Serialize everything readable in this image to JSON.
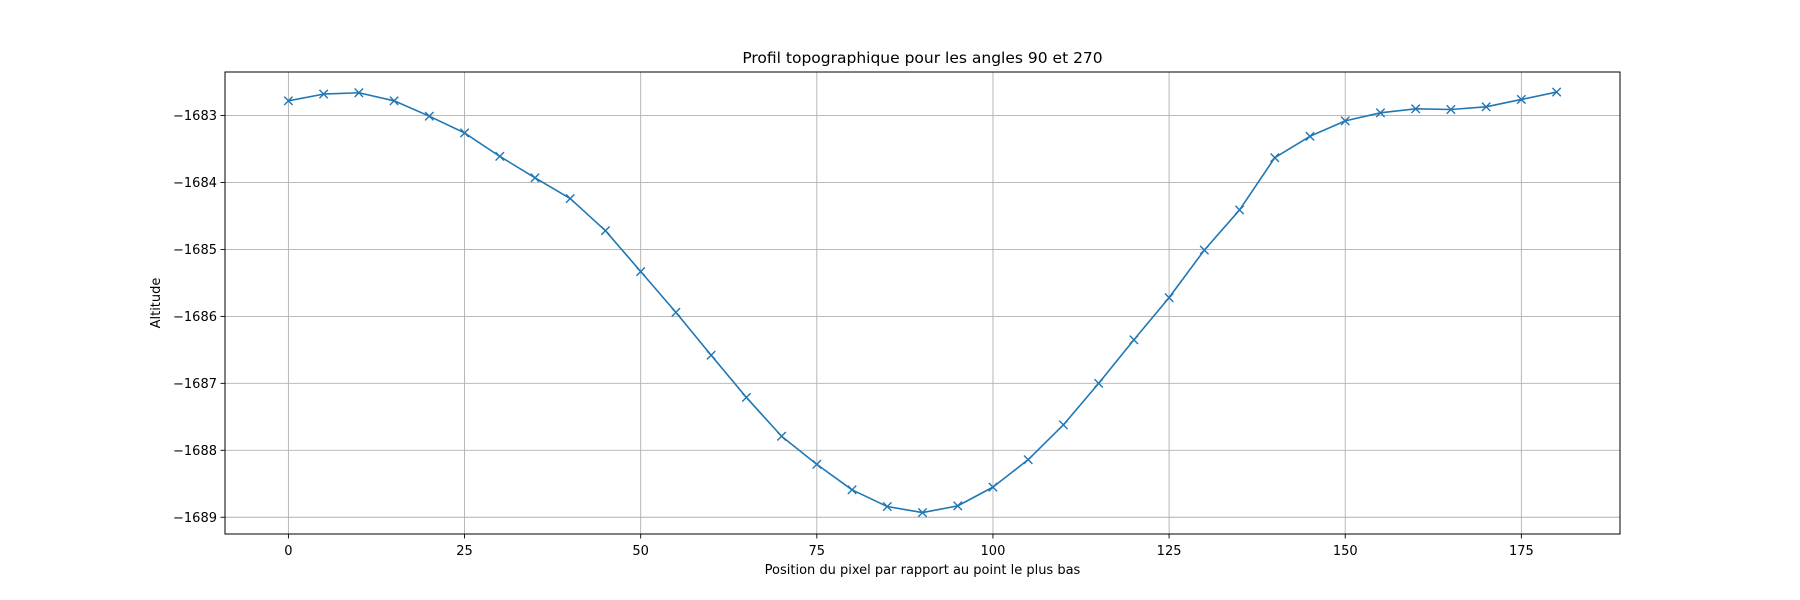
{
  "chart_data": {
    "type": "line",
    "title": "Profil topographique pour les angles 90 et 270",
    "xlabel": "Position du pixel par rapport au point le plus bas",
    "ylabel": "Altitude",
    "xlim": [
      -9,
      189
    ],
    "ylim": [
      -1689.25,
      -1682.35
    ],
    "xticks": [
      0,
      25,
      50,
      75,
      100,
      125,
      150,
      175
    ],
    "yticks": [
      -1689,
      -1688,
      -1687,
      -1686,
      -1685,
      -1684,
      -1683
    ],
    "ytick_labels": [
      "−1689",
      "−1688",
      "−1687",
      "−1686",
      "−1685",
      "−1684",
      "−1683"
    ],
    "grid": true,
    "series": [
      {
        "color": "#1f77b4",
        "marker": "x",
        "x": [
          0,
          5,
          10,
          15,
          20,
          25,
          30,
          35,
          40,
          45,
          50,
          55,
          60,
          65,
          70,
          75,
          80,
          85,
          90,
          95,
          100,
          105,
          110,
          115,
          120,
          125,
          130,
          135,
          140,
          145,
          150,
          155,
          160,
          165,
          170,
          175,
          180
        ],
        "y": [
          -1682.78,
          -1682.68,
          -1682.66,
          -1682.78,
          -1683.01,
          -1683.26,
          -1683.61,
          -1683.93,
          -1684.24,
          -1684.72,
          -1685.33,
          -1685.94,
          -1686.58,
          -1687.21,
          -1687.79,
          -1688.21,
          -1688.59,
          -1688.84,
          -1688.93,
          -1688.83,
          -1688.55,
          -1688.14,
          -1687.62,
          -1687.0,
          -1686.35,
          -1685.72,
          -1685.01,
          -1684.41,
          -1683.63,
          -1683.31,
          -1683.08,
          -1682.96,
          -1682.9,
          -1682.91,
          -1682.87,
          -1682.76,
          -1682.65
        ]
      }
    ]
  }
}
